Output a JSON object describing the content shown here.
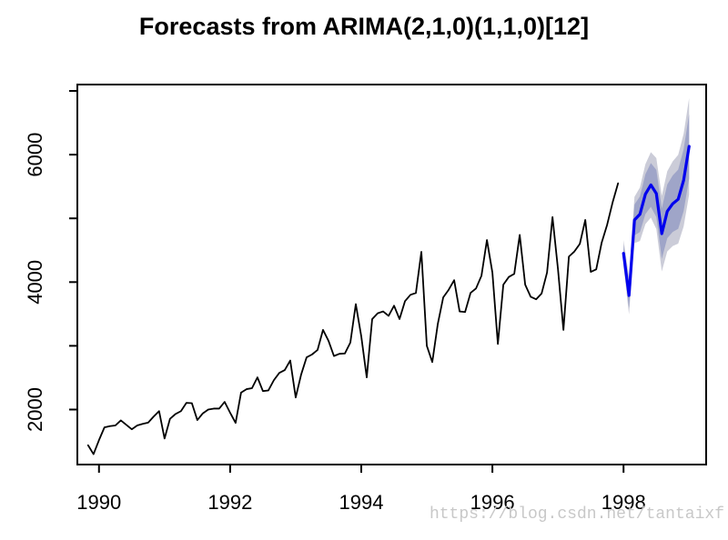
{
  "title": "Forecasts from ARIMA(2,1,0)(1,1,0)[12]",
  "watermark": "https://blog.csdn.net/tantaixf",
  "chart_data": {
    "type": "line",
    "title": "Forecasts from ARIMA(2,1,0)(1,1,0)[12]",
    "xlabel": "",
    "ylabel": "",
    "grid": false,
    "x_axis": {
      "range": [
        1989.67,
        1999.26
      ],
      "ticks": [
        1990,
        1992,
        1994,
        1996,
        1998
      ],
      "labels": [
        "1990",
        "1992",
        "1994",
        "1996",
        "1998"
      ]
    },
    "y_axis": {
      "range": [
        1137,
        7100
      ],
      "ticks": [
        2000,
        3000,
        4000,
        5000,
        6000,
        7000
      ],
      "labeled_at": [
        2000,
        4000,
        6000
      ],
      "labels": [
        "2000",
        "4000",
        "6000"
      ]
    },
    "history": {
      "name": "observed",
      "start": 1989.8333,
      "frequency": 12,
      "values": [
        1440,
        1300,
        1520,
        1720,
        1740,
        1750,
        1830,
        1760,
        1690,
        1750,
        1775,
        1795,
        1890,
        1975,
        1545,
        1855,
        1930,
        1975,
        2105,
        2100,
        1835,
        1940,
        2000,
        2015,
        2015,
        2120,
        1950,
        1790,
        2265,
        2320,
        2335,
        2505,
        2290,
        2300,
        2460,
        2575,
        2620,
        2770,
        2190,
        2550,
        2820,
        2865,
        2935,
        3250,
        3080,
        2840,
        2875,
        2880,
        3050,
        3655,
        3150,
        2505,
        3420,
        3510,
        3540,
        3470,
        3630,
        3420,
        3700,
        3800,
        3830,
        4475,
        3000,
        2745,
        3340,
        3760,
        3880,
        4030,
        3540,
        3530,
        3830,
        3900,
        4100,
        4660,
        4150,
        3030,
        3960,
        4080,
        4130,
        4740,
        3960,
        3770,
        3730,
        3820,
        4150,
        5020,
        4205,
        3250,
        4400,
        4480,
        4600,
        4975,
        4160,
        4200,
        4620,
        4900,
        5250,
        5550
      ]
    },
    "forecast": {
      "name": "point forecast",
      "start": 1998.0,
      "frequency": 12,
      "levels": [
        80,
        95
      ],
      "mean": [
        4450,
        3790,
        4975,
        5065,
        5380,
        5525,
        5390,
        4760,
        5110,
        5230,
        5300,
        5600,
        6130
      ],
      "lo80": [
        4310,
        3592,
        4733,
        4785,
        5067,
        5182,
        5020,
        4364,
        4690,
        4787,
        4836,
        5115,
        5625
      ],
      "hi80": [
        4590,
        3988,
        5217,
        5345,
        5693,
        5868,
        5760,
        5156,
        5530,
        5673,
        5764,
        6085,
        6635
      ],
      "lo95": [
        4240,
        3493,
        4611,
        4645,
        4910,
        5011,
        4834,
        4166,
        4480,
        4566,
        4603,
        4873,
        5373
      ],
      "hi95": [
        4660,
        4087,
        5339,
        5485,
        5850,
        6039,
        5946,
        5354,
        5740,
        5894,
        5997,
        6327,
        6887
      ]
    },
    "colors": {
      "history_line": "#000000",
      "forecast_line": "#0000ee",
      "band80": "#9fa5c8",
      "band95": "#cbccd8",
      "axis": "#000000",
      "watermark": "#c8c8c8"
    }
  }
}
